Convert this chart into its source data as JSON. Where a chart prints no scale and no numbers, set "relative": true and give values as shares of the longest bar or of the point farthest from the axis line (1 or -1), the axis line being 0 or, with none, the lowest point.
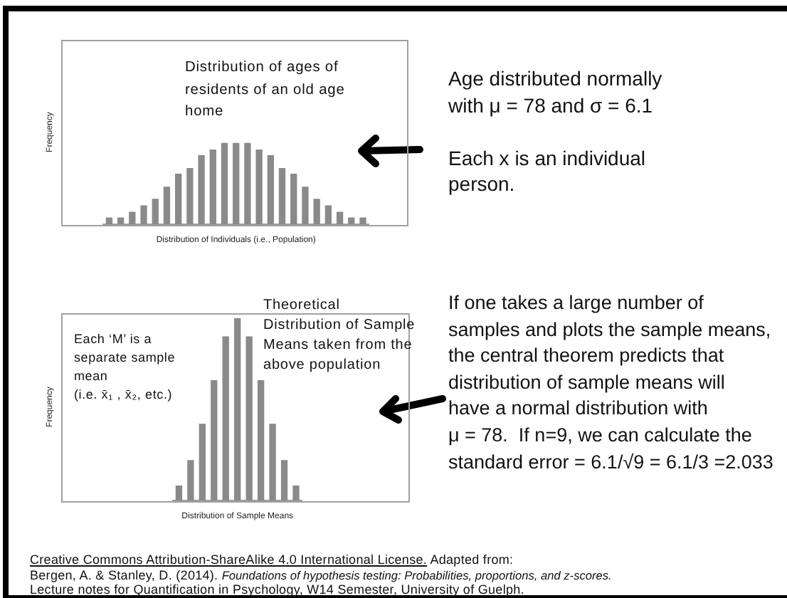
{
  "chart_data": [
    {
      "type": "bar",
      "relative": true,
      "xlabel": "Distribution of Individuals (i.e., Population)",
      "ylabel": "Frequency",
      "color": "#8a8a8a",
      "categories": [
        null,
        null,
        null,
        null,
        null,
        null,
        null,
        null,
        null,
        null,
        null,
        null,
        null,
        null,
        null,
        null,
        null,
        null,
        null,
        null,
        null,
        null,
        null
      ],
      "values": [
        0.08,
        0.08,
        0.15,
        0.23,
        0.31,
        0.46,
        0.62,
        0.69,
        0.85,
        0.92,
        1,
        1,
        1,
        0.92,
        0.85,
        0.69,
        0.62,
        0.46,
        0.31,
        0.23,
        0.15,
        0.08,
        0.08
      ],
      "annotations": [
        "Distribution of ages of\nresidents of an old age\nhome",
        "Age distributed normally\nwith μ = 78 and σ = 6.1",
        "Each x is an individual\nperson."
      ]
    },
    {
      "type": "bar",
      "relative": true,
      "xlabel": "Distribution of Sample Means",
      "ylabel": "Frequency",
      "color": "#8a8a8a",
      "categories": [
        null,
        null,
        null,
        null,
        null,
        null,
        null,
        null,
        null,
        null,
        null
      ],
      "values": [
        0.08,
        0.22,
        0.42,
        0.66,
        0.9,
        1,
        0.9,
        0.66,
        0.42,
        0.22,
        0.08
      ],
      "annotations": [
        "Each ‘M’ is a\nseparate sample\nmean\n(i.e. x̄₁ , x̄₂, etc.)",
        "Theoretical\nDistribution of Sample\nMeans taken from the\nabove population",
        "If one takes a large number of\nsamples and plots the sample means,\nthe central theorem predicts that\ndistribution of sample means will\nhave a normal distribution with\nμ = 78.  If n=9, we can calculate the\nstandard error = 6.1/√9 = 6.1/3 =2.033",
        "Creative Commons Attribution-ShareAlike 4.0 International License.",
        "Adapted from:",
        "Bergen, A. & Stanley, D. (2014).",
        "Foundations of hypothesis testing: Probabilities, proportions, and z-scores.",
        "Lecture notes for Quantification in Psychology, W14 Semester, University of Guelph."
      ]
    }
  ]
}
